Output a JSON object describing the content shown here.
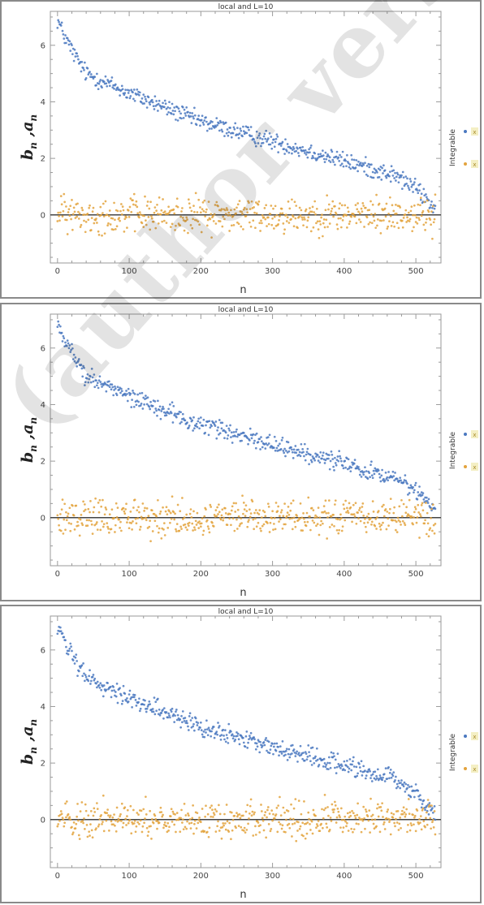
{
  "colors": {
    "series_b": "#4a78c0",
    "series_a": "#e3a33d",
    "frame": "#8a8a8a",
    "swatch": "#f4efc4"
  },
  "watermark": "(author version)",
  "legend_title": "Integrable",
  "legend_swatch_text": "x",
  "chart_data": [
    {
      "type": "scatter",
      "title": "local and L=10",
      "xlabel": "n",
      "ylabel": "b_n , a_n",
      "xlim": [
        -10,
        535
      ],
      "ylim": [
        -1.7,
        7.2
      ],
      "xticks": [
        0,
        100,
        200,
        300,
        400,
        500
      ],
      "yticks": [
        0,
        2,
        4,
        6
      ],
      "reference_line": 0,
      "series": [
        {
          "key": "b",
          "n_points": 528,
          "trend": [
            [
              0,
              6.9
            ],
            [
              10,
              6.3
            ],
            [
              25,
              5.6
            ],
            [
              40,
              5.0
            ],
            [
              100,
              4.3
            ],
            [
              200,
              3.3
            ],
            [
              300,
              2.6
            ],
            [
              400,
              1.9
            ],
            [
              470,
              1.4
            ],
            [
              500,
              0.95
            ],
            [
              528,
              0.2
            ]
          ],
          "spread": 0.22
        },
        {
          "key": "a",
          "n_points": 528,
          "trend": [
            [
              0,
              0.0
            ],
            [
              528,
              0.0
            ]
          ],
          "spread": 0.45
        }
      ]
    },
    {
      "type": "scatter",
      "title": "local and L=10",
      "xlabel": "n",
      "ylabel": "b_n , a_n",
      "xlim": [
        -10,
        535
      ],
      "ylim": [
        -1.7,
        7.2
      ],
      "xticks": [
        0,
        100,
        200,
        300,
        400,
        500
      ],
      "yticks": [
        0,
        2,
        4,
        6
      ],
      "reference_line": 0,
      "series": [
        {
          "key": "b",
          "n_points": 528,
          "trend": [
            [
              0,
              6.9
            ],
            [
              10,
              6.3
            ],
            [
              25,
              5.6
            ],
            [
              40,
              5.0
            ],
            [
              100,
              4.3
            ],
            [
              200,
              3.3
            ],
            [
              300,
              2.6
            ],
            [
              400,
              1.9
            ],
            [
              470,
              1.4
            ],
            [
              500,
              0.95
            ],
            [
              528,
              0.2
            ]
          ],
          "spread": 0.22
        },
        {
          "key": "a",
          "n_points": 528,
          "trend": [
            [
              0,
              0.0
            ],
            [
              528,
              0.0
            ]
          ],
          "spread": 0.45
        }
      ]
    },
    {
      "type": "scatter",
      "title": "local and L=10",
      "xlabel": "n",
      "ylabel": "b_n , a_n",
      "xlim": [
        -10,
        535
      ],
      "ylim": [
        -1.7,
        7.2
      ],
      "xticks": [
        0,
        100,
        200,
        300,
        400,
        500
      ],
      "yticks": [
        0,
        2,
        4,
        6
      ],
      "reference_line": 0,
      "series": [
        {
          "key": "b",
          "n_points": 528,
          "trend": [
            [
              0,
              6.9
            ],
            [
              10,
              6.3
            ],
            [
              25,
              5.6
            ],
            [
              40,
              5.0
            ],
            [
              100,
              4.3
            ],
            [
              200,
              3.3
            ],
            [
              300,
              2.6
            ],
            [
              400,
              1.9
            ],
            [
              470,
              1.4
            ],
            [
              500,
              0.95
            ],
            [
              528,
              0.2
            ]
          ],
          "spread": 0.22
        },
        {
          "key": "a",
          "n_points": 528,
          "trend": [
            [
              0,
              0.0
            ],
            [
              528,
              0.0
            ]
          ],
          "spread": 0.45
        }
      ]
    }
  ]
}
